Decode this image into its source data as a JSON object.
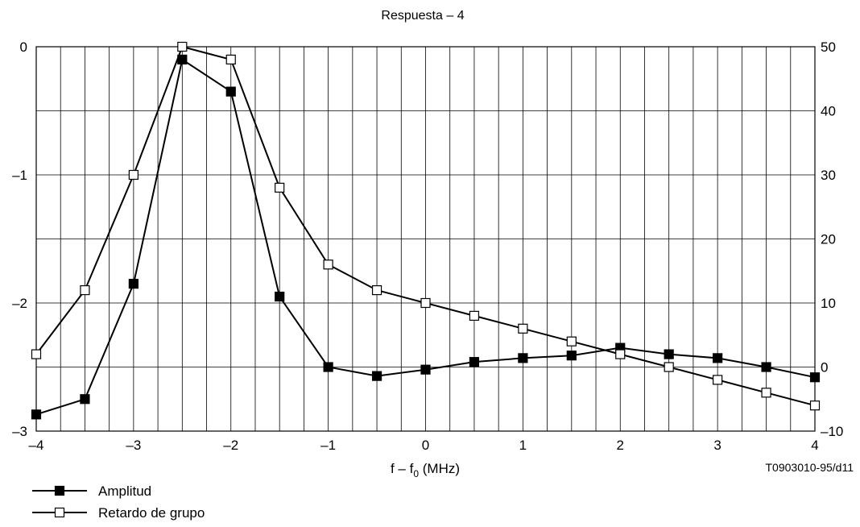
{
  "chart_data": {
    "type": "line",
    "title": "Respuesta – 4",
    "xlabel_main": "f – f",
    "xlabel_sub": "0",
    "xlabel_unit": " (MHz)",
    "reference_code": "T0903010-95/d11",
    "x_ticks": [
      -4,
      -3,
      -2,
      -1,
      0,
      1,
      2,
      3,
      4
    ],
    "x_tick_labels": [
      "–4",
      "–3",
      "–2",
      "–1",
      "0",
      "1",
      "2",
      "3",
      "4"
    ],
    "xlim": [
      -4,
      4
    ],
    "y_left_ticks": [
      0,
      -1,
      -2,
      -3
    ],
    "y_left_tick_labels": [
      "0",
      "–1",
      "–2",
      "–3"
    ],
    "ylim_left": [
      -3,
      0
    ],
    "y_right_ticks": [
      50,
      40,
      30,
      20,
      10,
      0,
      -10
    ],
    "y_right_tick_labels": [
      "50",
      "40",
      "30",
      "20",
      "10",
      "0",
      "–10"
    ],
    "ylim_right": [
      -10,
      50
    ],
    "grid": true,
    "legend_position": "bottom-left",
    "x": [
      -4,
      -3.5,
      -3,
      -2.5,
      -2,
      -1.5,
      -1,
      -0.5,
      0,
      0.5,
      1,
      1.5,
      2,
      2.5,
      3,
      3.5,
      4
    ],
    "series": [
      {
        "name": "Amplitud",
        "axis": "left",
        "marker": "filled-square",
        "values": [
          -2.87,
          -2.75,
          -1.85,
          -0.1,
          -0.35,
          -1.95,
          -2.5,
          -2.57,
          -2.52,
          -2.46,
          -2.43,
          -2.41,
          -2.35,
          -2.4,
          -2.43,
          -2.5,
          -2.58
        ]
      },
      {
        "name": "Retardo de grupo",
        "axis": "right",
        "marker": "open-square",
        "values": [
          2,
          12,
          30,
          50,
          48,
          28,
          16,
          12,
          10,
          8,
          6,
          4,
          2,
          0,
          -2,
          -4,
          -6
        ]
      }
    ]
  }
}
